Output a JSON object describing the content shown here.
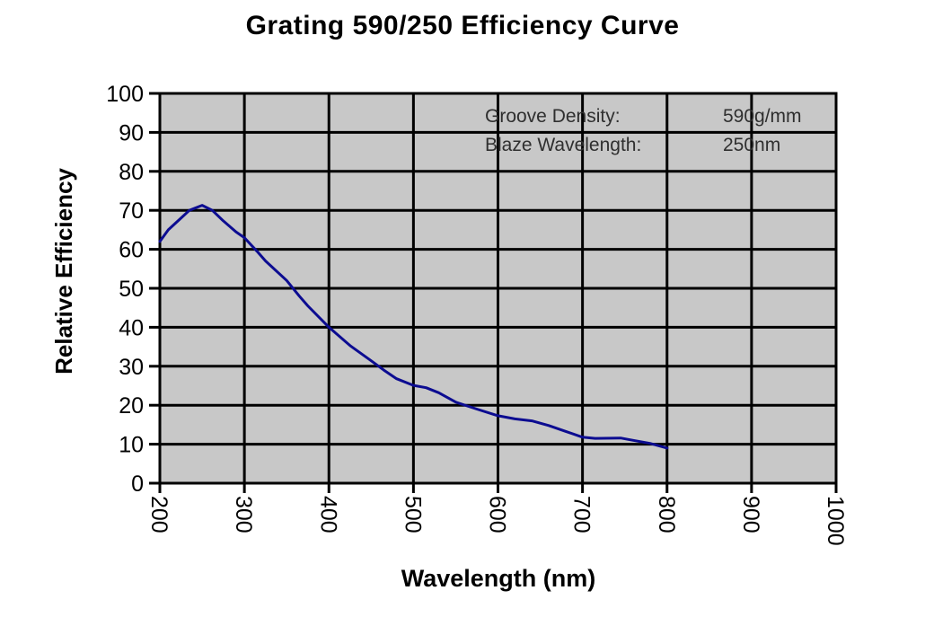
{
  "chart": {
    "title": "Grating 590/250 Efficiency Curve",
    "xlabel": "Wavelength (nm)",
    "ylabel": "Relative Efficiency",
    "annotation": [
      {
        "label": "Groove Density:",
        "value": "590g/mm"
      },
      {
        "label": "Blaze Wavelength:",
        "value": "250nm"
      }
    ]
  },
  "chart_data": {
    "type": "line",
    "title": "Grating 590/250 Efficiency Curve",
    "xlabel": "Wavelength (nm)",
    "ylabel": "Relative Efficiency",
    "xlim": [
      200,
      1000
    ],
    "ylim": [
      0,
      100
    ],
    "x_ticks": [
      200,
      300,
      400,
      500,
      600,
      700,
      800,
      900,
      1000
    ],
    "y_ticks": [
      0,
      10,
      20,
      30,
      40,
      50,
      60,
      70,
      80,
      90,
      100
    ],
    "grid": true,
    "legend": false,
    "annotation": [
      {
        "label": "Groove Density:",
        "value": "590g/mm"
      },
      {
        "label": "Blaze Wavelength:",
        "value": "250nm"
      }
    ],
    "series": [
      {
        "name": "relative-efficiency",
        "x": [
          200,
          210,
          225,
          235,
          250,
          262,
          275,
          290,
          300,
          315,
          325,
          350,
          365,
          375,
          400,
          415,
          425,
          450,
          465,
          480,
          500,
          515,
          530,
          550,
          575,
          600,
          620,
          640,
          660,
          680,
          700,
          715,
          745,
          760,
          780,
          800
        ],
        "y": [
          62,
          65,
          68,
          70,
          71.3,
          70,
          67.3,
          64.5,
          63,
          59.5,
          57,
          52,
          48,
          45.5,
          40,
          37.2,
          35.3,
          31.4,
          29,
          26.8,
          25.1,
          24.5,
          23.2,
          20.8,
          19,
          17.3,
          16.5,
          16,
          14.8,
          13.3,
          11.8,
          11.5,
          11.6,
          11,
          10.2,
          9
        ]
      }
    ],
    "colors": {
      "line": "#0c0c91",
      "plot_bg": "#c8c8c8",
      "grid": "#000000",
      "axis": "#000000",
      "tick_text": "#000000",
      "annotation_text": "#2f2f2f",
      "figure_bg": "#ffffff"
    }
  }
}
